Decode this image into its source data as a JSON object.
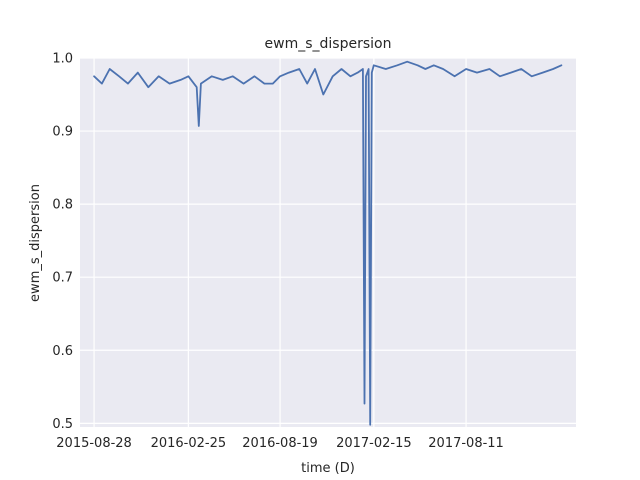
{
  "chart_data": {
    "type": "line",
    "title": "ewm_s_dispersion",
    "xlabel": "time (D)",
    "ylabel": "ewm_s_dispersion",
    "x_tick_labels": [
      "2015-08-28",
      "2016-02-25",
      "2016-08-19",
      "2017-02-15",
      "2017-08-11"
    ],
    "x_ticks": [
      "2015-08-28",
      "2016-02-25",
      "2016-08-19",
      "2017-02-15",
      "2017-08-11"
    ],
    "x_range": [
      "2015-08-01",
      "2018-03-10"
    ],
    "ylim": [
      0.495,
      1.0
    ],
    "y_ticks": [
      0.5,
      0.6,
      0.7,
      0.8,
      0.9,
      1.0
    ],
    "y_tick_labels": [
      "0.5",
      "0.6",
      "0.7",
      "0.8",
      "0.9",
      "1.0"
    ],
    "grid": true,
    "colors": {
      "series": "#4c72b0",
      "background": "#eaeaf2",
      "grid": "#ffffff"
    },
    "series": [
      {
        "x": [
          "2015-08-28",
          "2015-09-12",
          "2015-09-27",
          "2015-10-15",
          "2015-11-01",
          "2015-11-20",
          "2015-12-10",
          "2015-12-30",
          "2016-01-20",
          "2016-02-10",
          "2016-02-25",
          "2016-03-12",
          "2016-03-16",
          "2016-03-20",
          "2016-04-10",
          "2016-05-01",
          "2016-05-20",
          "2016-06-10",
          "2016-07-01",
          "2016-07-20",
          "2016-08-05",
          "2016-08-19",
          "2016-09-05",
          "2016-09-25",
          "2016-10-10",
          "2016-10-25",
          "2016-11-10",
          "2016-11-28",
          "2016-12-15",
          "2017-01-01",
          "2017-01-15",
          "2017-01-25",
          "2017-01-28",
          "2017-01-31",
          "2017-02-05",
          "2017-02-08",
          "2017-02-11",
          "2017-02-15",
          "2017-03-10",
          "2017-04-01",
          "2017-04-20",
          "2017-05-10",
          "2017-05-25",
          "2017-06-10",
          "2017-06-28",
          "2017-07-20",
          "2017-08-11",
          "2017-09-01",
          "2017-09-25",
          "2017-10-15",
          "2017-11-05",
          "2017-11-25",
          "2017-12-15",
          "2018-01-05",
          "2018-01-25",
          "2018-02-10"
        ],
        "y": [
          0.975,
          0.965,
          0.985,
          0.975,
          0.965,
          0.98,
          0.96,
          0.975,
          0.965,
          0.97,
          0.975,
          0.96,
          0.907,
          0.965,
          0.975,
          0.97,
          0.975,
          0.965,
          0.975,
          0.965,
          0.965,
          0.975,
          0.98,
          0.985,
          0.965,
          0.985,
          0.95,
          0.975,
          0.985,
          0.975,
          0.98,
          0.985,
          0.527,
          0.975,
          0.985,
          0.498,
          0.98,
          0.99,
          0.985,
          0.99,
          0.995,
          0.99,
          0.985,
          0.99,
          0.985,
          0.975,
          0.985,
          0.98,
          0.985,
          0.975,
          0.98,
          0.985,
          0.975,
          0.98,
          0.985,
          0.99
        ]
      }
    ]
  }
}
